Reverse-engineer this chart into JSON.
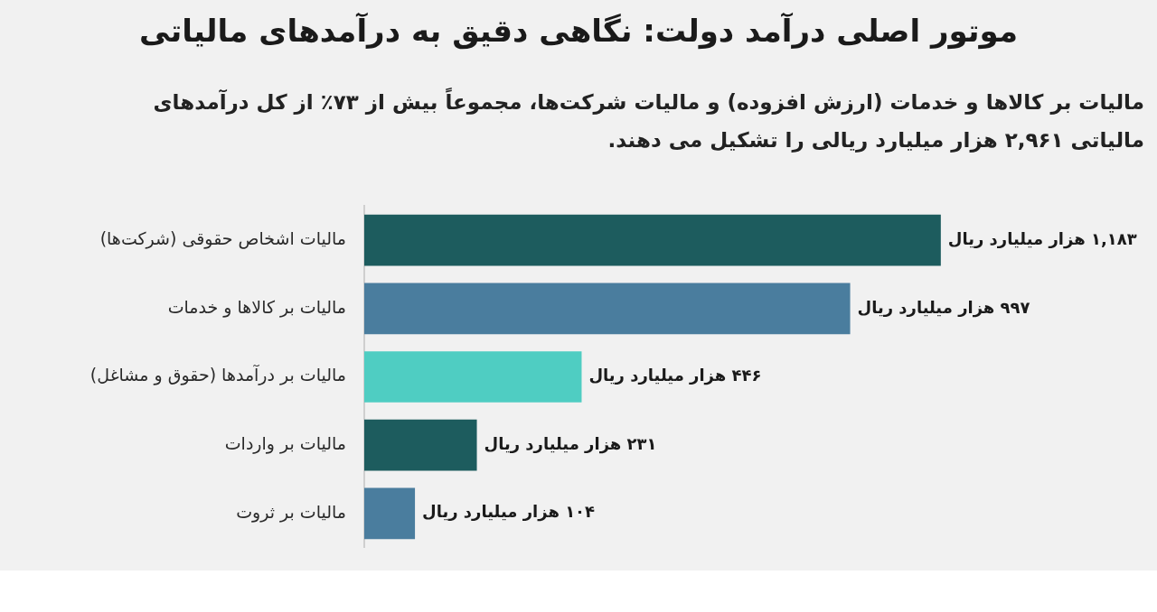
{
  "chart_data": {
    "type": "bar",
    "orientation": "horizontal",
    "title": "موتور اصلی درآمد دولت: نگاهی دقیق به درآمدهای مالیاتی",
    "subtitle": "مالیات بر کالاها و خدمات (ارزش افزوده) و مالیات شرکت‌ها، مجموعاً بیش از ۷۳٪ از کل درآمدهای مالیاتی ۲,۹۶۱ هزار میلیارد ریالی را تشکیل می دهند.",
    "categories": [
      "مالیات اشخاص حقوقی (شرکت‌ها)",
      "مالیات بر کالاها و خدمات",
      "مالیات بر درآمدها (حقوق و مشاغل)",
      "مالیات بر واردات",
      "مالیات بر ثروت"
    ],
    "values": [
      1183,
      997,
      446,
      231,
      104
    ],
    "colors": [
      "#1d5c5e",
      "#4a7d9e",
      "#4fcdc2",
      "#1d5c5e",
      "#4a7d9e"
    ],
    "value_labels": [
      "۱,۱۸۳ هزار میلیارد ریال",
      "۹۹۷ هزار میلیارد ریال",
      "۴۴۶ هزار میلیارد ریال",
      "۲۳۱ هزار میلیارد ریال",
      "۱۰۴ هزار میلیارد ریال"
    ],
    "legend": false,
    "tick_labels": "y"
  }
}
